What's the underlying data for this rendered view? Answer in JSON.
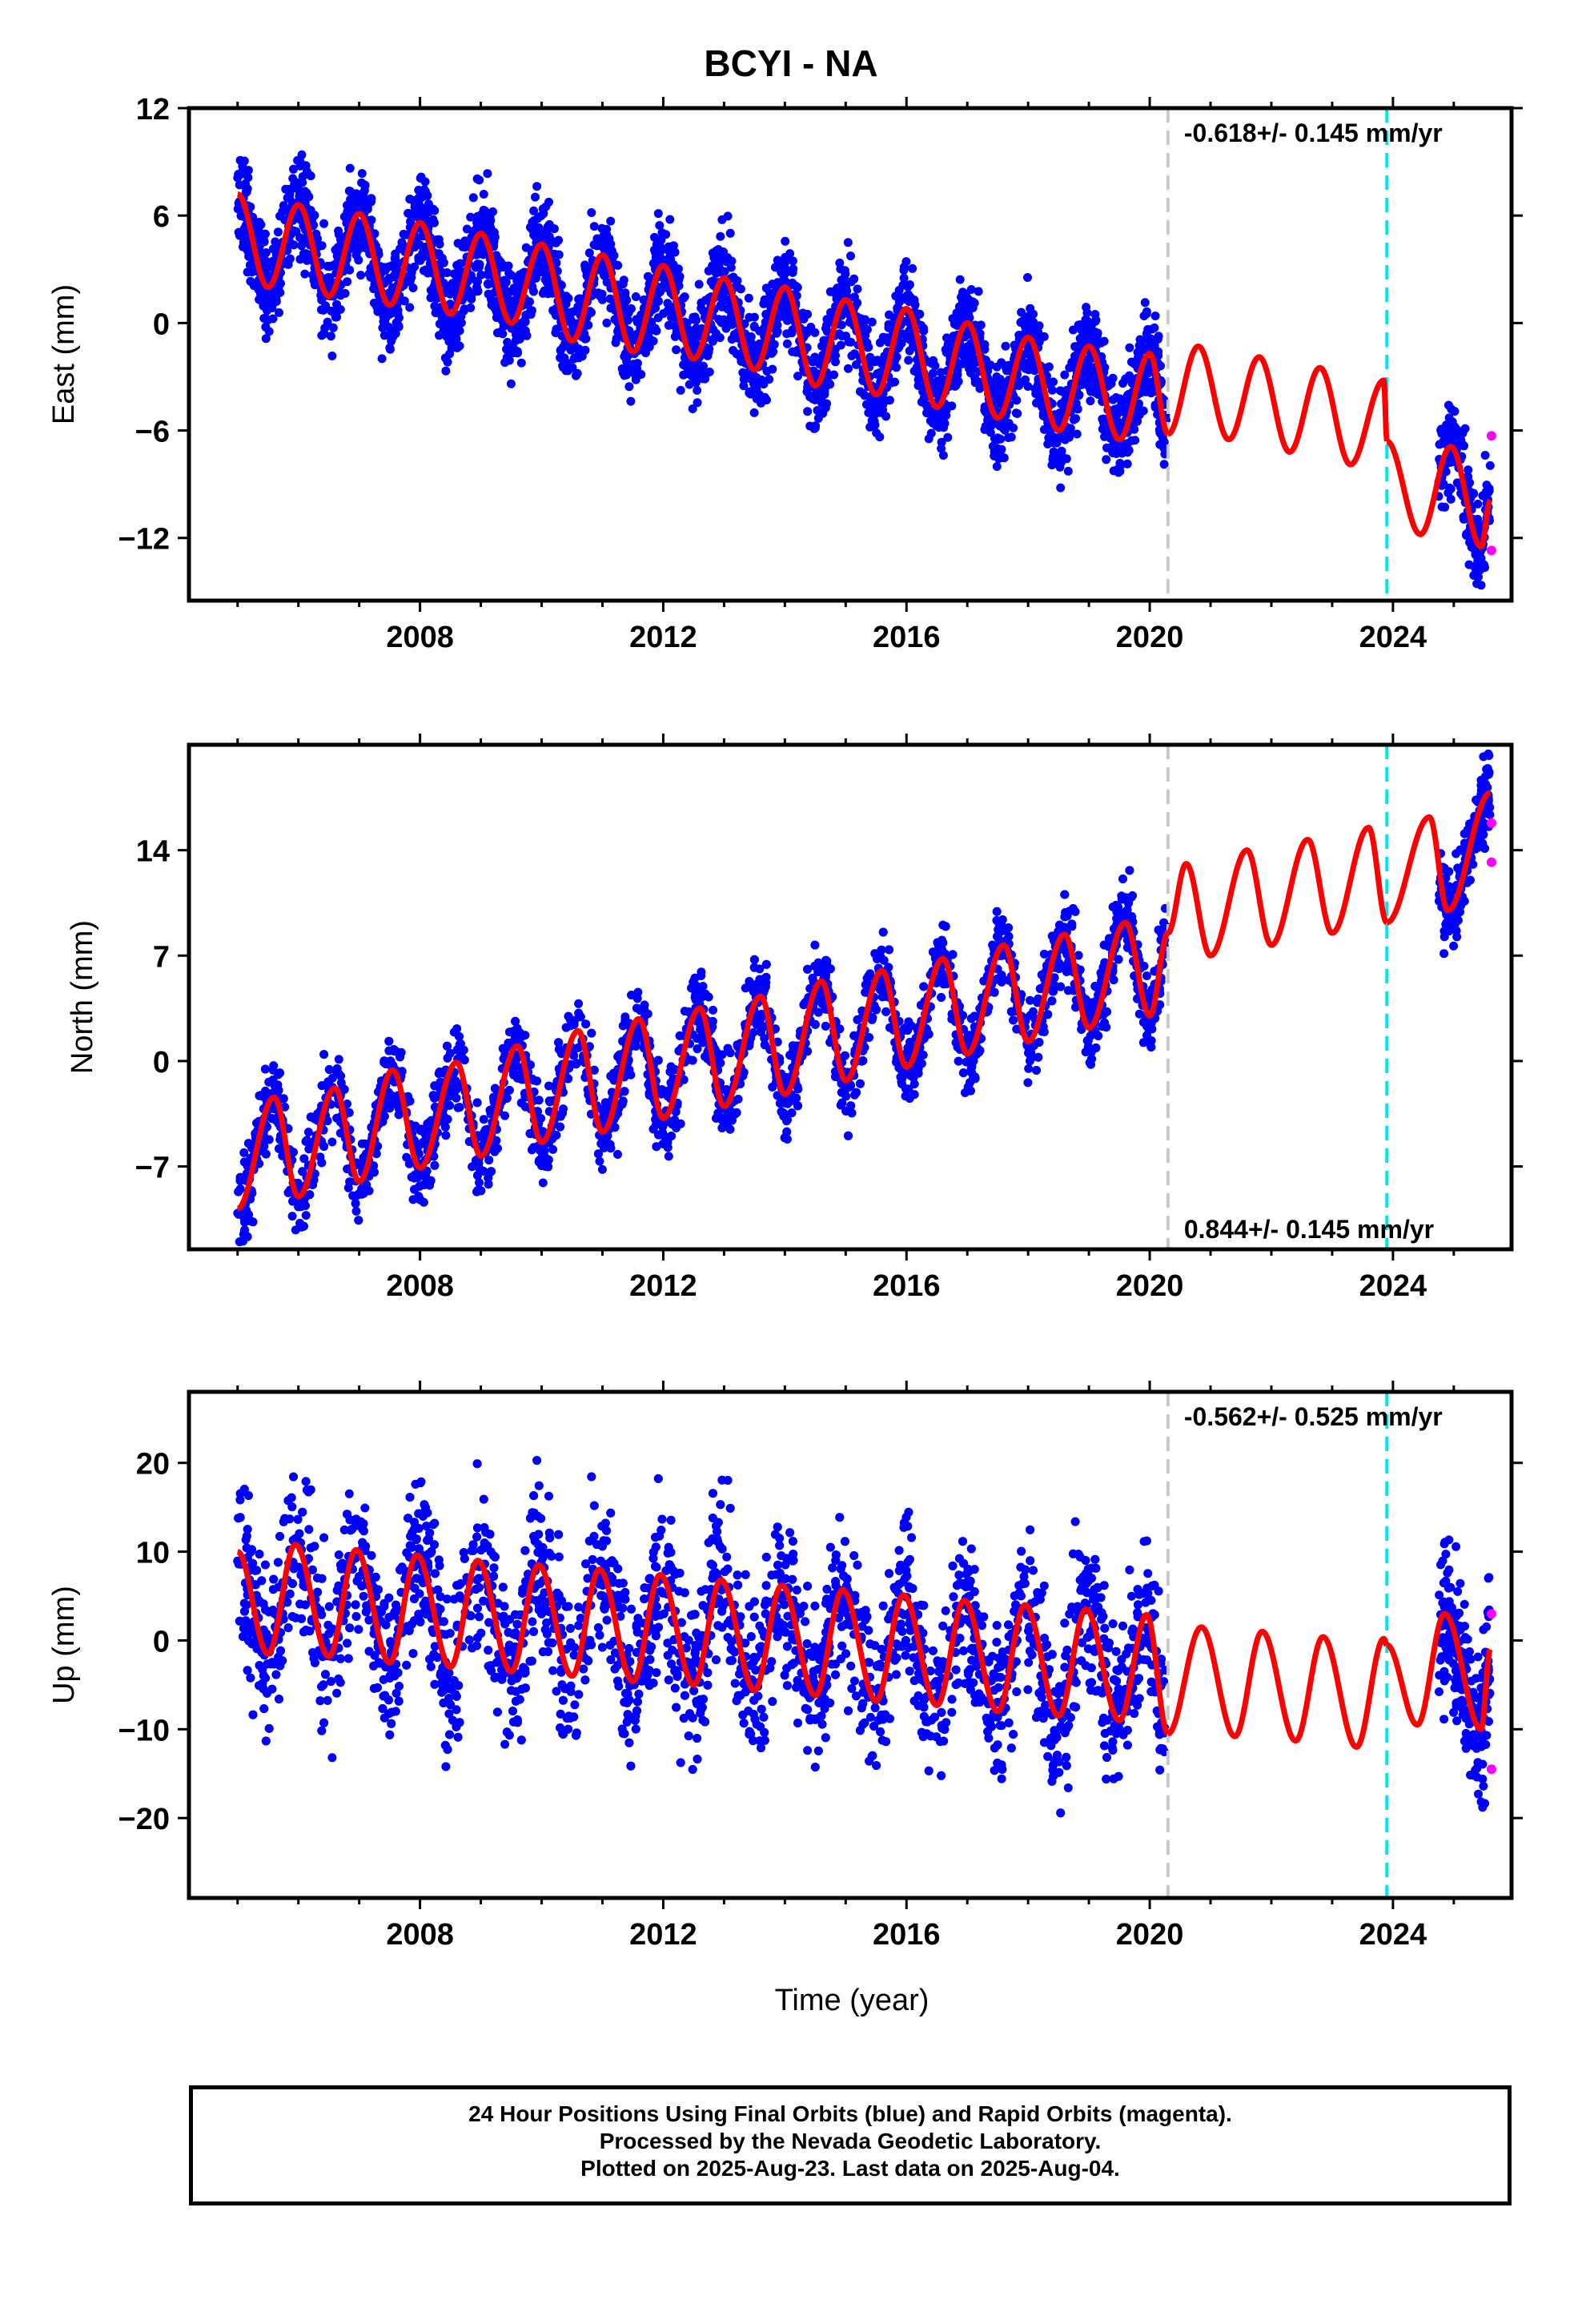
{
  "title": "BCYI - NA",
  "xlabel": "Time (year)",
  "caption": {
    "line1": "24 Hour Positions Using Final Orbits (blue) and Rapid Orbits (magenta).",
    "line2": "Processed by the Nevada Geodetic Laboratory.",
    "line3": "Plotted on 2025-Aug-23. Last data on 2025-Aug-04."
  },
  "colors": {
    "final": "#0000ff",
    "rapid": "#ff00ff",
    "model": "#ff0000",
    "equipment_change": "#c8c8c8",
    "event": "#00e5ee"
  },
  "chart_data": [
    {
      "type": "scatter",
      "component": "East",
      "ylabel": "East (mm)",
      "rate_label": "-0.618+/- 0.145 mm/yr",
      "xlim": [
        2004.2,
        2025.95
      ],
      "ylim": [
        -15.5,
        12
      ],
      "xticks": [
        2008,
        2012,
        2016,
        2020,
        2024
      ],
      "yticks": [
        -12,
        -6,
        0,
        6,
        12
      ],
      "vlines": {
        "equipment_change": 2020.3,
        "event": 2023.9
      },
      "model": {
        "segments": [
          [
            2004.9,
            2020.3
          ],
          [
            2020.3,
            2023.9
          ],
          [
            2023.9,
            2025.6
          ]
        ],
        "points": [
          [
            2005.0,
            7.2
          ],
          [
            2005.5,
            2.0
          ],
          [
            2006.0,
            6.6
          ],
          [
            2006.5,
            1.5
          ],
          [
            2007.0,
            6.1
          ],
          [
            2007.5,
            1.0
          ],
          [
            2008.0,
            5.6
          ],
          [
            2008.5,
            0.5
          ],
          [
            2009.0,
            5.0
          ],
          [
            2009.5,
            0.0
          ],
          [
            2010.0,
            4.4
          ],
          [
            2010.5,
            -1.0
          ],
          [
            2011.0,
            3.8
          ],
          [
            2011.5,
            -1.6
          ],
          [
            2012.0,
            3.2
          ],
          [
            2012.5,
            -2.0
          ],
          [
            2013.0,
            2.5
          ],
          [
            2013.5,
            -2.6
          ],
          [
            2014.0,
            2.0
          ],
          [
            2014.5,
            -3.5
          ],
          [
            2015.0,
            1.3
          ],
          [
            2015.5,
            -4.0
          ],
          [
            2016.0,
            0.8
          ],
          [
            2016.5,
            -4.7
          ],
          [
            2017.0,
            0.0
          ],
          [
            2017.5,
            -5.3
          ],
          [
            2018.0,
            -0.8
          ],
          [
            2018.5,
            -6.0
          ],
          [
            2019.0,
            -1.3
          ],
          [
            2019.5,
            -6.5
          ],
          [
            2020.0,
            -1.7
          ],
          [
            2020.3,
            -6.2
          ],
          [
            2020.8,
            -1.3
          ],
          [
            2021.3,
            -6.5
          ],
          [
            2021.8,
            -1.9
          ],
          [
            2022.3,
            -7.2
          ],
          [
            2022.8,
            -2.5
          ],
          [
            2023.3,
            -7.9
          ],
          [
            2023.85,
            -3.2
          ],
          [
            2023.9,
            -6.6
          ],
          [
            2024.45,
            -11.8
          ],
          [
            2024.95,
            -6.9
          ],
          [
            2025.45,
            -12.5
          ],
          [
            2025.6,
            -9.9
          ]
        ]
      },
      "rapid_points": [
        [
          2025.62,
          -6.3
        ],
        [
          2025.62,
          -12.7
        ]
      ]
    },
    {
      "type": "scatter",
      "component": "North",
      "ylabel": "North (mm)",
      "rate_label": "0.844+/- 0.145 mm/yr",
      "xlim": [
        2004.2,
        2025.95
      ],
      "ylim": [
        -12.5,
        21
      ],
      "xticks": [
        2008,
        2012,
        2016,
        2020,
        2024
      ],
      "yticks": [
        -7,
        0,
        7,
        14
      ],
      "vlines": {
        "equipment_change": 2020.3,
        "event": 2023.9
      },
      "model": {
        "segments": [
          [
            2004.9,
            2020.3
          ],
          [
            2020.3,
            2023.9
          ],
          [
            2023.9,
            2025.6
          ]
        ],
        "points": [
          [
            2005.0,
            -9.8
          ],
          [
            2005.6,
            -2.4
          ],
          [
            2006.0,
            -9.0
          ],
          [
            2006.6,
            -1.8
          ],
          [
            2007.0,
            -8.0
          ],
          [
            2007.55,
            -0.6
          ],
          [
            2008.0,
            -7.1
          ],
          [
            2008.6,
            -0.1
          ],
          [
            2009.0,
            -6.3
          ],
          [
            2009.6,
            1.0
          ],
          [
            2010.0,
            -5.4
          ],
          [
            2010.6,
            2.0
          ],
          [
            2011.0,
            -4.7
          ],
          [
            2011.6,
            2.8
          ],
          [
            2012.0,
            -3.8
          ],
          [
            2012.6,
            3.5
          ],
          [
            2013.0,
            -3.0
          ],
          [
            2013.6,
            4.3
          ],
          [
            2014.0,
            -2.2
          ],
          [
            2014.6,
            5.3
          ],
          [
            2015.0,
            -1.3
          ],
          [
            2015.6,
            6.0
          ],
          [
            2016.0,
            -0.4
          ],
          [
            2016.6,
            6.8
          ],
          [
            2017.0,
            0.5
          ],
          [
            2017.6,
            7.7
          ],
          [
            2018.0,
            1.3
          ],
          [
            2018.6,
            8.4
          ],
          [
            2019.0,
            2.2
          ],
          [
            2019.6,
            9.2
          ],
          [
            2020.0,
            3.0
          ],
          [
            2020.3,
            8.5
          ],
          [
            2020.6,
            13.1
          ],
          [
            2021.0,
            7.0
          ],
          [
            2021.6,
            14.0
          ],
          [
            2022.0,
            7.7
          ],
          [
            2022.6,
            14.7
          ],
          [
            2023.0,
            8.5
          ],
          [
            2023.6,
            15.5
          ],
          [
            2023.9,
            9.2
          ],
          [
            2024.6,
            16.2
          ],
          [
            2024.9,
            10.0
          ],
          [
            2025.6,
            17.8
          ]
        ]
      },
      "rapid_points": [
        [
          2025.62,
          15.8
        ],
        [
          2025.62,
          13.2
        ]
      ]
    },
    {
      "type": "scatter",
      "component": "Up",
      "ylabel": "Up (mm)",
      "rate_label": "-0.562+/- 0.525 mm/yr",
      "xlim": [
        2004.2,
        2025.95
      ],
      "ylim": [
        -29,
        28
      ],
      "xticks": [
        2008,
        2012,
        2016,
        2020,
        2024
      ],
      "yticks": [
        -20,
        -10,
        0,
        10,
        20
      ],
      "vlines": {
        "equipment_change": 2020.3,
        "event": 2023.9
      },
      "model": {
        "segments": [
          [
            2004.9,
            2020.3
          ],
          [
            2020.3,
            2023.9
          ],
          [
            2023.9,
            2025.6
          ]
        ],
        "points": [
          [
            2005.0,
            10.0
          ],
          [
            2005.5,
            -1.5
          ],
          [
            2005.95,
            10.8
          ],
          [
            2006.5,
            -1.8
          ],
          [
            2006.95,
            10.2
          ],
          [
            2007.5,
            -2.5
          ],
          [
            2007.95,
            9.6
          ],
          [
            2008.5,
            -3.0
          ],
          [
            2008.95,
            9.0
          ],
          [
            2009.5,
            -3.5
          ],
          [
            2009.95,
            8.5
          ],
          [
            2010.5,
            -4.0
          ],
          [
            2010.95,
            8.0
          ],
          [
            2011.5,
            -4.6
          ],
          [
            2011.95,
            7.4
          ],
          [
            2012.5,
            -5.0
          ],
          [
            2012.95,
            6.8
          ],
          [
            2013.5,
            -5.6
          ],
          [
            2013.95,
            6.2
          ],
          [
            2014.5,
            -6.2
          ],
          [
            2014.95,
            5.7
          ],
          [
            2015.5,
            -6.8
          ],
          [
            2015.95,
            5.1
          ],
          [
            2016.5,
            -7.3
          ],
          [
            2016.95,
            4.5
          ],
          [
            2017.5,
            -8.0
          ],
          [
            2017.95,
            4.0
          ],
          [
            2018.5,
            -8.5
          ],
          [
            2018.95,
            3.5
          ],
          [
            2019.5,
            -9.0
          ],
          [
            2019.95,
            2.9
          ],
          [
            2020.3,
            -10.5
          ],
          [
            2020.85,
            1.5
          ],
          [
            2021.4,
            -10.8
          ],
          [
            2021.85,
            1.0
          ],
          [
            2022.4,
            -11.3
          ],
          [
            2022.85,
            0.4
          ],
          [
            2023.4,
            -12.0
          ],
          [
            2023.85,
            0.2
          ],
          [
            2023.9,
            -0.5
          ],
          [
            2024.4,
            -9.5
          ],
          [
            2024.85,
            3.0
          ],
          [
            2025.45,
            -10.0
          ],
          [
            2025.6,
            -1.0
          ]
        ]
      },
      "rapid_points": [
        [
          2025.62,
          3.0
        ],
        [
          2025.62,
          -14.5
        ]
      ]
    }
  ]
}
